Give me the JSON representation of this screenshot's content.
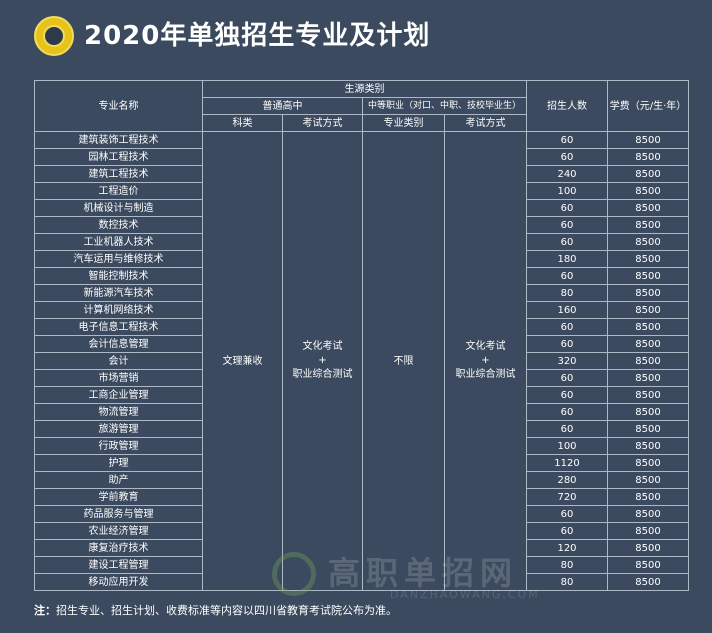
{
  "title": "2020年单独招生专业及计划",
  "headers": {
    "major": "专业名称",
    "source_type": "生源类别",
    "general_hs": "普通高中",
    "vocational": "中等职业（对口、中职、技校毕业生）",
    "subject": "科类",
    "exam_method": "考试方式",
    "major_category": "专业类别",
    "exam_method2": "考试方式",
    "enrollment": "招生人数",
    "tuition": "学费（元/生·年）"
  },
  "merged": {
    "subject_value": "文理兼收",
    "exam_line1": "文化考试",
    "exam_plus": "+",
    "exam_line2": "职业综合测试",
    "category_value": "不限"
  },
  "rows": [
    {
      "name": "建筑装饰工程技术",
      "count": "60",
      "fee": "8500"
    },
    {
      "name": "园林工程技术",
      "count": "60",
      "fee": "8500"
    },
    {
      "name": "建筑工程技术",
      "count": "240",
      "fee": "8500"
    },
    {
      "name": "工程造价",
      "count": "100",
      "fee": "8500"
    },
    {
      "name": "机械设计与制造",
      "count": "60",
      "fee": "8500"
    },
    {
      "name": "数控技术",
      "count": "60",
      "fee": "8500"
    },
    {
      "name": "工业机器人技术",
      "count": "60",
      "fee": "8500"
    },
    {
      "name": "汽车运用与维修技术",
      "count": "180",
      "fee": "8500"
    },
    {
      "name": "智能控制技术",
      "count": "60",
      "fee": "8500"
    },
    {
      "name": "新能源汽车技术",
      "count": "80",
      "fee": "8500"
    },
    {
      "name": "计算机网络技术",
      "count": "160",
      "fee": "8500"
    },
    {
      "name": "电子信息工程技术",
      "count": "60",
      "fee": "8500"
    },
    {
      "name": "会计信息管理",
      "count": "60",
      "fee": "8500"
    },
    {
      "name": "会计",
      "count": "320",
      "fee": "8500"
    },
    {
      "name": "市场营销",
      "count": "60",
      "fee": "8500"
    },
    {
      "name": "工商企业管理",
      "count": "60",
      "fee": "8500"
    },
    {
      "name": "物流管理",
      "count": "60",
      "fee": "8500"
    },
    {
      "name": "旅游管理",
      "count": "60",
      "fee": "8500"
    },
    {
      "name": "行政管理",
      "count": "100",
      "fee": "8500"
    },
    {
      "name": "护理",
      "count": "1120",
      "fee": "8500"
    },
    {
      "name": "助产",
      "count": "280",
      "fee": "8500"
    },
    {
      "name": "学前教育",
      "count": "720",
      "fee": "8500"
    },
    {
      "name": "药品服务与管理",
      "count": "60",
      "fee": "8500"
    },
    {
      "name": "农业经济管理",
      "count": "60",
      "fee": "8500"
    },
    {
      "name": "康复治疗技术",
      "count": "120",
      "fee": "8500"
    },
    {
      "name": "建设工程管理",
      "count": "80",
      "fee": "8500"
    },
    {
      "name": "移动应用开发",
      "count": "80",
      "fee": "8500"
    }
  ],
  "note": {
    "label": "注：",
    "text": "招生专业、招生计划、收费标准等内容以四川省教育考试院公布为准。"
  },
  "watermark": {
    "text": "高职单招网",
    "sub": "DANZHAOWANG.COM"
  }
}
